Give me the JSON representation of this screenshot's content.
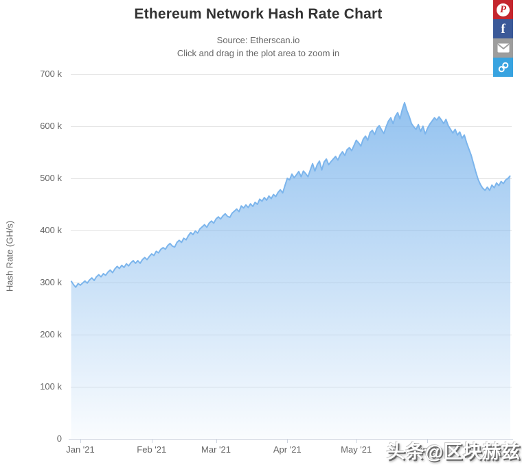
{
  "header": {
    "title": "Ethereum Network Hash Rate Chart",
    "subtitle_line1": "Source: Etherscan.io",
    "subtitle_line2": "Click and drag in the plot area to zoom in"
  },
  "share": {
    "buttons": [
      {
        "id": "pinterest",
        "label": "P",
        "color": "#c4262e"
      },
      {
        "id": "facebook",
        "label": "f",
        "color": "#3b5998"
      },
      {
        "id": "email",
        "label": "",
        "color": "#9d9d9d"
      },
      {
        "id": "link",
        "label": "",
        "color": "#38a3e0"
      }
    ]
  },
  "watermark": {
    "text": "头条@区块赫兹"
  },
  "chart_data": {
    "type": "area",
    "title": "Ethereum Network Hash Rate Chart",
    "subtitle": [
      "Source: Etherscan.io",
      "Click and drag in the plot area to zoom in"
    ],
    "xlabel": "",
    "ylabel": "Hash Rate (GH/s)",
    "values_unit": "thousand GH/s",
    "ylim": [
      0,
      700
    ],
    "grid": true,
    "legend": false,
    "colors": {
      "line": "#7cb5ec",
      "grid_line": "#e6e6e6",
      "axis_line": "#ccd3de",
      "text": "#666666"
    },
    "y_ticks": [
      {
        "value": 0,
        "label": "0"
      },
      {
        "value": 100,
        "label": "100 k"
      },
      {
        "value": 200,
        "label": "200 k"
      },
      {
        "value": 300,
        "label": "300 k"
      },
      {
        "value": 400,
        "label": "400 k"
      },
      {
        "value": 500,
        "label": "500 k"
      },
      {
        "value": 600,
        "label": "600 k"
      },
      {
        "value": 700,
        "label": "700 k"
      }
    ],
    "x_unit": "days since 2021-01-01",
    "x_range_days": [
      -4.2,
      187
    ],
    "x_ticks": [
      {
        "day": 0,
        "label": "Jan '21"
      },
      {
        "day": 31,
        "label": "Feb '21"
      },
      {
        "day": 59,
        "label": "Mar '21"
      },
      {
        "day": 90,
        "label": "Apr '21"
      },
      {
        "day": 120,
        "label": "May '21"
      },
      {
        "day": 151,
        "label": "Jun '21"
      }
    ],
    "series": [
      {
        "name": "Ethereum Network Hash Rate",
        "color": "#7cb5ec",
        "fill_gradient_rgba": [
          [
            124,
            181,
            236,
            0.82
          ],
          [
            124,
            181,
            236,
            0.04
          ]
        ],
        "points_k_ghs": [
          [
            -4,
            303
          ],
          [
            -3,
            296
          ],
          [
            -2,
            291
          ],
          [
            -1,
            298
          ],
          [
            0,
            295
          ],
          [
            1,
            299
          ],
          [
            2,
            303
          ],
          [
            3,
            299
          ],
          [
            4,
            305
          ],
          [
            5,
            309
          ],
          [
            6,
            304
          ],
          [
            7,
            311
          ],
          [
            8,
            315
          ],
          [
            9,
            311
          ],
          [
            10,
            317
          ],
          [
            11,
            314
          ],
          [
            12,
            320
          ],
          [
            13,
            324
          ],
          [
            14,
            319
          ],
          [
            15,
            326
          ],
          [
            16,
            331
          ],
          [
            17,
            327
          ],
          [
            18,
            333
          ],
          [
            19,
            329
          ],
          [
            20,
            336
          ],
          [
            21,
            332
          ],
          [
            22,
            338
          ],
          [
            23,
            342
          ],
          [
            24,
            337
          ],
          [
            25,
            342
          ],
          [
            26,
            337
          ],
          [
            27,
            344
          ],
          [
            28,
            348
          ],
          [
            29,
            344
          ],
          [
            30,
            350
          ],
          [
            31,
            355
          ],
          [
            32,
            352
          ],
          [
            33,
            360
          ],
          [
            34,
            357
          ],
          [
            35,
            364
          ],
          [
            36,
            367
          ],
          [
            37,
            364
          ],
          [
            38,
            371
          ],
          [
            39,
            375
          ],
          [
            40,
            370
          ],
          [
            41,
            368
          ],
          [
            42,
            377
          ],
          [
            43,
            381
          ],
          [
            44,
            377
          ],
          [
            45,
            385
          ],
          [
            46,
            382
          ],
          [
            47,
            390
          ],
          [
            48,
            396
          ],
          [
            49,
            392
          ],
          [
            50,
            399
          ],
          [
            51,
            395
          ],
          [
            52,
            403
          ],
          [
            53,
            407
          ],
          [
            54,
            411
          ],
          [
            55,
            406
          ],
          [
            56,
            414
          ],
          [
            57,
            418
          ],
          [
            58,
            414
          ],
          [
            59,
            422
          ],
          [
            60,
            426
          ],
          [
            61,
            422
          ],
          [
            62,
            428
          ],
          [
            63,
            432
          ],
          [
            64,
            427
          ],
          [
            65,
            425
          ],
          [
            66,
            433
          ],
          [
            67,
            437
          ],
          [
            68,
            441
          ],
          [
            69,
            436
          ],
          [
            70,
            447
          ],
          [
            71,
            443
          ],
          [
            72,
            449
          ],
          [
            73,
            444
          ],
          [
            74,
            451
          ],
          [
            75,
            446
          ],
          [
            76,
            454
          ],
          [
            77,
            450
          ],
          [
            78,
            460
          ],
          [
            79,
            456
          ],
          [
            80,
            463
          ],
          [
            81,
            458
          ],
          [
            82,
            466
          ],
          [
            83,
            461
          ],
          [
            84,
            469
          ],
          [
            85,
            465
          ],
          [
            86,
            473
          ],
          [
            87,
            478
          ],
          [
            88,
            472
          ],
          [
            89,
            486
          ],
          [
            90,
            500
          ],
          [
            91,
            497
          ],
          [
            92,
            508
          ],
          [
            93,
            501
          ],
          [
            94,
            507
          ],
          [
            95,
            513
          ],
          [
            96,
            503
          ],
          [
            97,
            514
          ],
          [
            98,
            509
          ],
          [
            99,
            503
          ],
          [
            100,
            516
          ],
          [
            101,
            528
          ],
          [
            102,
            514
          ],
          [
            103,
            526
          ],
          [
            104,
            533
          ],
          [
            105,
            516
          ],
          [
            106,
            531
          ],
          [
            107,
            537
          ],
          [
            108,
            526
          ],
          [
            109,
            532
          ],
          [
            110,
            537
          ],
          [
            111,
            542
          ],
          [
            112,
            535
          ],
          [
            113,
            545
          ],
          [
            114,
            551
          ],
          [
            115,
            544
          ],
          [
            116,
            555
          ],
          [
            117,
            559
          ],
          [
            118,
            553
          ],
          [
            119,
            563
          ],
          [
            120,
            573
          ],
          [
            121,
            568
          ],
          [
            122,
            562
          ],
          [
            123,
            575
          ],
          [
            124,
            581
          ],
          [
            125,
            573
          ],
          [
            126,
            588
          ],
          [
            127,
            592
          ],
          [
            128,
            584
          ],
          [
            129,
            596
          ],
          [
            130,
            601
          ],
          [
            131,
            593
          ],
          [
            132,
            586
          ],
          [
            133,
            599
          ],
          [
            134,
            610
          ],
          [
            135,
            616
          ],
          [
            136,
            605
          ],
          [
            137,
            619
          ],
          [
            138,
            626
          ],
          [
            139,
            614
          ],
          [
            140,
            632
          ],
          [
            141,
            645
          ],
          [
            142,
            630
          ],
          [
            143,
            619
          ],
          [
            144,
            605
          ],
          [
            145,
            599
          ],
          [
            146,
            594
          ],
          [
            147,
            603
          ],
          [
            148,
            590
          ],
          [
            149,
            600
          ],
          [
            150,
            585
          ],
          [
            151,
            596
          ],
          [
            152,
            604
          ],
          [
            153,
            610
          ],
          [
            154,
            616
          ],
          [
            155,
            612
          ],
          [
            156,
            618
          ],
          [
            157,
            612
          ],
          [
            158,
            605
          ],
          [
            159,
            613
          ],
          [
            160,
            601
          ],
          [
            161,
            594
          ],
          [
            162,
            587
          ],
          [
            163,
            594
          ],
          [
            164,
            583
          ],
          [
            165,
            589
          ],
          [
            166,
            577
          ],
          [
            167,
            583
          ],
          [
            168,
            568
          ],
          [
            169,
            556
          ],
          [
            170,
            544
          ],
          [
            171,
            528
          ],
          [
            172,
            512
          ],
          [
            173,
            498
          ],
          [
            174,
            488
          ],
          [
            175,
            481
          ],
          [
            176,
            477
          ],
          [
            177,
            483
          ],
          [
            178,
            477
          ],
          [
            179,
            487
          ],
          [
            180,
            482
          ],
          [
            181,
            491
          ],
          [
            182,
            486
          ],
          [
            183,
            494
          ],
          [
            184,
            490
          ],
          [
            185,
            497
          ],
          [
            186,
            500
          ],
          [
            187,
            505
          ]
        ]
      }
    ]
  }
}
